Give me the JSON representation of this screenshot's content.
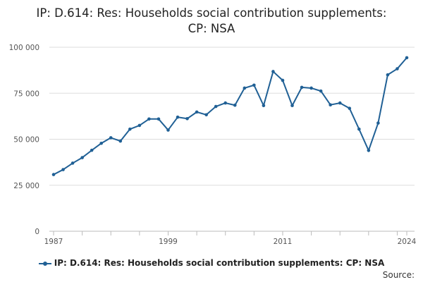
{
  "chart_data": {
    "type": "line",
    "title_line1": "IP: D.614: Res: Households social contribution supplements:",
    "title_line2": "CP: NSA",
    "x": [
      1987,
      1988,
      1989,
      1990,
      1991,
      1992,
      1993,
      1994,
      1995,
      1996,
      1997,
      1998,
      1999,
      2000,
      2001,
      2002,
      2003,
      2004,
      2005,
      2006,
      2007,
      2008,
      2009,
      2010,
      2011,
      2012,
      2013,
      2014,
      2015,
      2016,
      2017,
      2018,
      2019,
      2020,
      2021,
      2022,
      2023,
      2024
    ],
    "series": [
      {
        "name": "IP: D.614: Res: Households social contribution supplements: CP: NSA",
        "values": [
          30800,
          33500,
          37000,
          40000,
          44000,
          47800,
          50800,
          49000,
          55500,
          57500,
          61000,
          61000,
          55000,
          62000,
          61200,
          64800,
          63300,
          67800,
          69700,
          68500,
          77800,
          79400,
          68300,
          86800,
          82000,
          68300,
          78200,
          77800,
          76200,
          68700,
          69700,
          66800,
          55500,
          43900,
          58800,
          85000,
          88300,
          94300
        ]
      }
    ],
    "xticks": [
      1987,
      1999,
      2011,
      2024
    ],
    "xtick_labels": [
      "1987",
      "1999",
      "2011",
      "2024"
    ],
    "yticks": [
      0,
      25000,
      50000,
      75000,
      100000
    ],
    "ytick_labels": [
      "0",
      "25 000",
      "50 000",
      "75 000",
      "100 000"
    ],
    "ylim": [
      0,
      100000
    ],
    "xlim": [
      1987,
      2024
    ],
    "color": "#206095",
    "legend_label": "IP: D.614: Res: Households social contribution supplements: CP: NSA",
    "source_label": "Source:"
  }
}
